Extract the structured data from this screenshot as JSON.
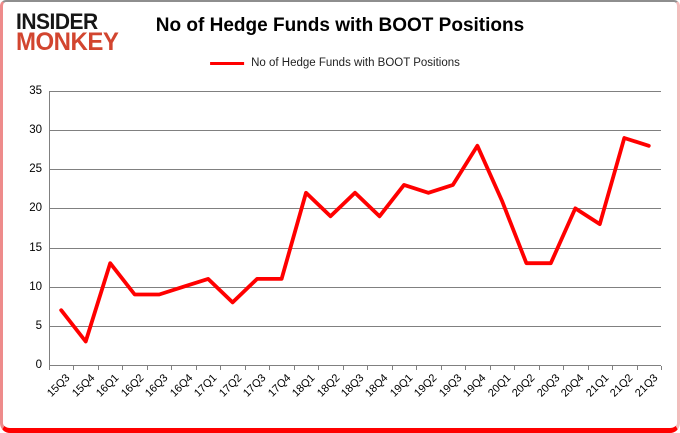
{
  "header": {
    "logo_line1": "INSIDER",
    "logo_line2": "MONKEY",
    "title": "No of Hedge Funds with BOOT Positions",
    "legend_label": "No of Hedge Funds with BOOT Positions"
  },
  "colors": {
    "line": "#FF0000",
    "grid": "#808080",
    "logo_red": "#D2452F",
    "border_bottom": "#FF0000",
    "border_left": "#EE8B8B",
    "border_right": "#F3BCBC",
    "border_top": "#8E8E8E"
  },
  "chart_data": {
    "type": "line",
    "title": "No of Hedge Funds with BOOT Positions",
    "categories": [
      "15Q3",
      "15Q4",
      "16Q1",
      "16Q2",
      "16Q3",
      "16Q4",
      "17Q1",
      "17Q2",
      "17Q3",
      "17Q4",
      "18Q1",
      "18Q2",
      "18Q3",
      "18Q4",
      "19Q1",
      "19Q2",
      "19Q3",
      "19Q4",
      "20Q1",
      "20Q2",
      "20Q3",
      "20Q4",
      "21Q1",
      "21Q2",
      "21Q3"
    ],
    "series": [
      {
        "name": "No of Hedge Funds with BOOT Positions",
        "values": [
          7,
          3,
          13,
          9,
          9,
          10,
          11,
          8,
          11,
          11,
          22,
          19,
          22,
          19,
          23,
          22,
          23,
          28,
          21,
          13,
          13,
          20,
          18,
          29,
          28
        ]
      }
    ],
    "xlabel": "",
    "ylabel": "",
    "ylim": [
      0,
      35
    ],
    "yticks": [
      0,
      5,
      10,
      15,
      20,
      25,
      30,
      35
    ],
    "grid": "horizontal",
    "legend_position": "top"
  }
}
